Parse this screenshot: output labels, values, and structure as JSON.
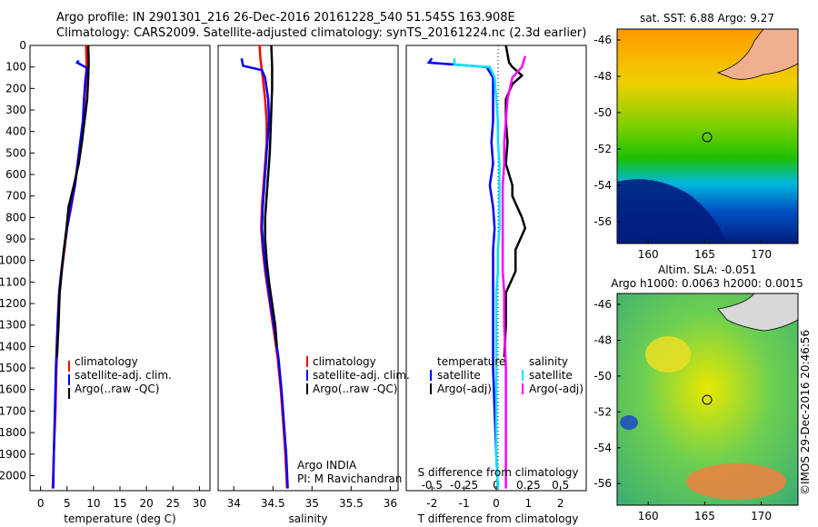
{
  "title_line1": "Argo profile: IN 2901301_216 26-Dec-2016 20161228_540 51.545S 163.908E",
  "title_line2": "Climatology: CARS2009. Satellite-adjusted climatology: synTS_20161224.nc (2.3d earlier)",
  "colors": {
    "climatology": "#ff0000",
    "satellite": "#0000ff",
    "argo": "#000000",
    "salinity_satellite": "#00e5ff",
    "salinity_argo": "#ff00ff"
  },
  "depth_ticks": [
    "0",
    "100",
    "200",
    "300",
    "400",
    "500",
    "600",
    "700",
    "800",
    "900",
    "1000",
    "1100",
    "1200",
    "1300",
    "1400",
    "1500",
    "1600",
    "1700",
    "1800",
    "1900",
    "2000"
  ],
  "chart_data": [
    {
      "type": "line",
      "xlabel": "temperature (deg C)",
      "xlim": [
        -2,
        32
      ],
      "ylim": [
        2070,
        0
      ],
      "x_ticks": [
        "0",
        "5",
        "10",
        "15",
        "20",
        "25",
        "30"
      ],
      "legend": [
        "climatology",
        "satellite-adj. clim.",
        "Argo(..raw -QC)"
      ],
      "series": [
        {
          "name": "climatology",
          "points": [
            [
              8.6,
              0
            ],
            [
              8.7,
              80
            ],
            [
              8.6,
              150
            ],
            [
              8.3,
              250
            ],
            [
              8.1,
              350
            ],
            [
              7.5,
              450
            ],
            [
              7.0,
              550
            ],
            [
              6.5,
              650
            ],
            [
              5.8,
              750
            ],
            [
              5.0,
              850
            ],
            [
              4.5,
              950
            ],
            [
              4.0,
              1050
            ],
            [
              3.6,
              1150
            ],
            [
              3.3,
              1300
            ],
            [
              3.0,
              1500
            ],
            [
              2.8,
              1700
            ],
            [
              2.5,
              1900
            ],
            [
              2.3,
              2060
            ]
          ]
        },
        {
          "name": "satellite-adj. clim.",
          "points": [
            [
              7.2,
              70
            ],
            [
              6.9,
              80
            ],
            [
              8.8,
              105
            ],
            [
              8.5,
              150
            ],
            [
              8.2,
              250
            ],
            [
              8.0,
              350
            ],
            [
              7.5,
              450
            ],
            [
              7.0,
              550
            ],
            [
              6.5,
              650
            ],
            [
              5.7,
              750
            ],
            [
              5.0,
              850
            ],
            [
              4.4,
              950
            ],
            [
              3.9,
              1050
            ],
            [
              3.5,
              1150
            ],
            [
              3.2,
              1300
            ],
            [
              2.9,
              1500
            ],
            [
              2.7,
              1700
            ],
            [
              2.5,
              1900
            ],
            [
              2.4,
              2060
            ]
          ]
        },
        {
          "name": "Argo(..raw -QC)",
          "points": [
            [
              9.0,
              0
            ],
            [
              9.1,
              80
            ],
            [
              9.0,
              150
            ],
            [
              8.8,
              250
            ],
            [
              8.3,
              350
            ],
            [
              7.8,
              450
            ],
            [
              7.2,
              550
            ],
            [
              6.3,
              650
            ],
            [
              5.3,
              750
            ],
            [
              4.9,
              850
            ],
            [
              4.4,
              950
            ],
            [
              4.0,
              1050
            ],
            [
              3.6,
              1150
            ],
            [
              3.4,
              1300
            ],
            [
              3.1,
              1450
            ]
          ]
        }
      ]
    },
    {
      "type": "line",
      "xlabel": "salinity",
      "xlim": [
        33.8,
        36.1
      ],
      "ylim": [
        2070,
        0
      ],
      "x_ticks": [
        "34",
        "34.5",
        "35",
        "35.5",
        "36"
      ],
      "legend": [
        "climatology",
        "satellite-adj. clim.",
        "Argo(..raw -QC)"
      ],
      "annotation": [
        "Argo INDIA",
        "PI: M Ravichandran"
      ],
      "series": [
        {
          "name": "climatology",
          "points": [
            [
              34.33,
              0
            ],
            [
              34.34,
              60
            ],
            [
              34.37,
              150
            ],
            [
              34.4,
              250
            ],
            [
              34.42,
              350
            ],
            [
              34.42,
              450
            ],
            [
              34.4,
              550
            ],
            [
              34.38,
              650
            ],
            [
              34.36,
              750
            ],
            [
              34.35,
              850
            ],
            [
              34.37,
              950
            ],
            [
              34.4,
              1050
            ],
            [
              34.44,
              1150
            ],
            [
              34.5,
              1300
            ],
            [
              34.56,
              1450
            ],
            [
              34.6,
              1600
            ],
            [
              34.63,
              1750
            ],
            [
              34.66,
              1900
            ],
            [
              34.68,
              2060
            ]
          ]
        },
        {
          "name": "satellite-adj. clim.",
          "points": [
            [
              34.1,
              60
            ],
            [
              34.12,
              95
            ],
            [
              34.36,
              115
            ],
            [
              34.4,
              150
            ],
            [
              34.44,
              250
            ],
            [
              34.45,
              350
            ],
            [
              34.43,
              450
            ],
            [
              34.41,
              550
            ],
            [
              34.39,
              650
            ],
            [
              34.37,
              750
            ],
            [
              34.36,
              850
            ],
            [
              34.38,
              950
            ],
            [
              34.41,
              1050
            ],
            [
              34.45,
              1150
            ],
            [
              34.51,
              1300
            ],
            [
              34.57,
              1450
            ],
            [
              34.61,
              1600
            ],
            [
              34.64,
              1750
            ],
            [
              34.67,
              1900
            ],
            [
              34.69,
              2060
            ]
          ]
        },
        {
          "name": "Argo(..raw -QC)",
          "points": [
            [
              34.48,
              0
            ],
            [
              34.49,
              100
            ],
            [
              34.49,
              200
            ],
            [
              34.48,
              300
            ],
            [
              34.47,
              400
            ],
            [
              34.46,
              500
            ],
            [
              34.44,
              600
            ],
            [
              34.42,
              700
            ],
            [
              34.4,
              800
            ],
            [
              34.4,
              900
            ],
            [
              34.42,
              1000
            ],
            [
              34.45,
              1100
            ],
            [
              34.49,
              1200
            ],
            [
              34.53,
              1300
            ],
            [
              34.55,
              1400
            ]
          ]
        }
      ]
    },
    {
      "type": "line",
      "xlabel": "T difference from climatology",
      "xlabel2": "S difference from climatology",
      "xlim": [
        -2.8,
        2.8
      ],
      "ylim": [
        2070,
        0
      ],
      "x_ticks": [
        "-2",
        "-1",
        "0",
        "1",
        "2"
      ],
      "s_ticks": [
        "-0.5",
        "-0.25",
        "0",
        "0.25",
        "0.5"
      ],
      "legend_temperature": [
        "temperature",
        "satellite",
        "Argo(-adj)"
      ],
      "legend_salinity": [
        "salinity",
        "satellite",
        "Argo(-adj)"
      ],
      "series": [
        {
          "name": "satellite",
          "points": [
            [
              -2.0,
              60
            ],
            [
              -2.1,
              80
            ],
            [
              -0.3,
              100
            ],
            [
              -0.1,
              150
            ],
            [
              -0.1,
              250
            ],
            [
              -0.1,
              350
            ],
            [
              -0.15,
              450
            ],
            [
              -0.1,
              550
            ],
            [
              -0.2,
              650
            ],
            [
              -0.1,
              750
            ],
            [
              -0.05,
              850
            ],
            [
              -0.1,
              950
            ],
            [
              -0.1,
              1050
            ],
            [
              -0.1,
              1150
            ],
            [
              -0.1,
              1300
            ],
            [
              -0.1,
              1500
            ],
            [
              -0.05,
              1700
            ],
            [
              0.0,
              1900
            ],
            [
              0.05,
              2060
            ]
          ]
        },
        {
          "name": "Argo(-adj)",
          "points": [
            [
              0.3,
              0
            ],
            [
              0.4,
              80
            ],
            [
              0.5,
              100
            ],
            [
              0.8,
              140
            ],
            [
              0.5,
              180
            ],
            [
              0.3,
              250
            ],
            [
              0.3,
              350
            ],
            [
              0.35,
              450
            ],
            [
              0.3,
              550
            ],
            [
              0.5,
              650
            ],
            [
              0.5,
              700
            ],
            [
              0.8,
              800
            ],
            [
              0.9,
              850
            ],
            [
              0.6,
              950
            ],
            [
              0.6,
              1050
            ],
            [
              0.3,
              1150
            ],
            [
              0.3,
              1300
            ],
            [
              0.25,
              1450
            ]
          ]
        },
        {
          "name": "satellite",
          "points": [
            [
              -1.3,
              60
            ],
            [
              -1.3,
              90
            ],
            [
              -0.2,
              100
            ],
            [
              -0.05,
              150
            ],
            [
              0.0,
              250
            ],
            [
              0.05,
              350
            ],
            [
              0.05,
              450
            ],
            [
              0.1,
              550
            ],
            [
              0.1,
              650
            ],
            [
              0.1,
              750
            ],
            [
              0.1,
              850
            ],
            [
              0.05,
              950
            ],
            [
              0.05,
              1050
            ],
            [
              0.0,
              1150
            ],
            [
              0.0,
              1300
            ],
            [
              0.0,
              1500
            ],
            [
              0.0,
              1700
            ],
            [
              0.0,
              1900
            ],
            [
              0.05,
              2060
            ]
          ]
        },
        {
          "name": "Argo(-adj)",
          "points": [
            [
              0.9,
              50
            ],
            [
              0.8,
              100
            ],
            [
              0.5,
              150
            ],
            [
              0.35,
              250
            ],
            [
              0.3,
              350
            ],
            [
              0.25,
              450
            ],
            [
              0.25,
              550
            ],
            [
              0.2,
              650
            ],
            [
              0.2,
              750
            ],
            [
              0.2,
              850
            ],
            [
              0.2,
              950
            ],
            [
              0.2,
              1050
            ],
            [
              0.25,
              1150
            ],
            [
              0.25,
              1300
            ],
            [
              0.3,
              1500
            ],
            [
              0.3,
              1700
            ],
            [
              0.3,
              1900
            ],
            [
              0.3,
              2060
            ]
          ]
        }
      ]
    }
  ],
  "map_sst": {
    "title": "sat. SST: 6.88 Argo: 9.27",
    "x_ticks": [
      "160",
      "165",
      "170"
    ],
    "y_ticks": [
      "-46",
      "-48",
      "-50",
      "-52",
      "-54",
      "-56"
    ]
  },
  "map_sla": {
    "title_line1": "Altim. SLA: -0.051",
    "title_line2": "Argo h1000: 0.0063 h2000: 0.0015",
    "x_ticks": [
      "160",
      "165",
      "170"
    ],
    "y_ticks": [
      "-46",
      "-48",
      "-50",
      "-52",
      "-54",
      "-56"
    ]
  },
  "credit": "©IMOS 29-Dec-2016 20:46:56"
}
